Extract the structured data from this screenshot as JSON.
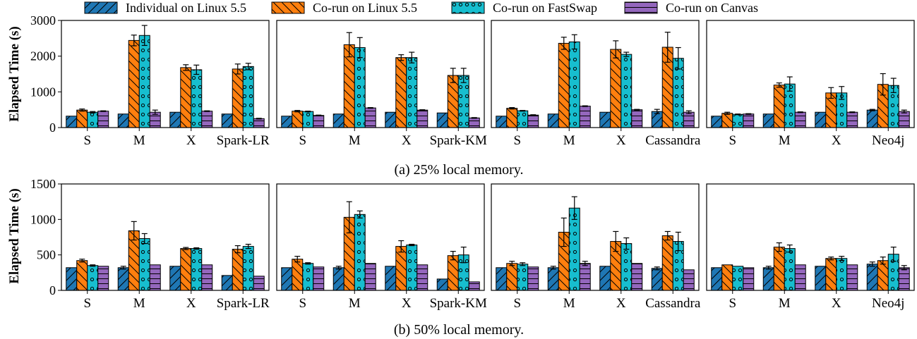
{
  "legend": {
    "entries": [
      {
        "label": "Individual on Linux 5.5",
        "color": "#1f77b4",
        "pattern": "slash"
      },
      {
        "label": "Co-run on Linux 5.5",
        "color": "#ff7f0e",
        "pattern": "backslash"
      },
      {
        "label": "Co-run on FastSwap",
        "color": "#17becf",
        "pattern": "circles"
      },
      {
        "label": "Co-run on Canvas",
        "color": "#9467bd",
        "pattern": "hlines"
      }
    ]
  },
  "rows": [
    {
      "caption": "(a) 25% local memory.",
      "ylabel": "Elapsed Time (s)"
    },
    {
      "caption": "(b) 50% local memory.",
      "ylabel": "Elapsed Time (s)"
    }
  ],
  "chart_data": [
    {
      "type": "bar",
      "row": 0,
      "col": 0,
      "categories": [
        "S",
        "M",
        "X",
        "Spark-LR"
      ],
      "ylim": [
        0,
        3000
      ],
      "yticks": [
        "0",
        "1000",
        "2000",
        "3000"
      ],
      "ylabel": "Elapsed Time (s)",
      "series": [
        {
          "name": "Individual on Linux 5.5",
          "values": [
            320,
            380,
            430,
            380
          ],
          "err": [
            0,
            0,
            0,
            0
          ]
        },
        {
          "name": "Co-run on Linux 5.5",
          "values": [
            490,
            2440,
            1680,
            1640
          ],
          "err": [
            30,
            150,
            80,
            140
          ]
        },
        {
          "name": "Co-run on FastSwap",
          "values": [
            430,
            2580,
            1620,
            1710
          ],
          "err": [
            20,
            280,
            130,
            90
          ]
        },
        {
          "name": "Co-run on Canvas",
          "values": [
            460,
            430,
            460,
            250
          ],
          "err": [
            10,
            60,
            10,
            10
          ]
        }
      ]
    },
    {
      "type": "bar",
      "row": 0,
      "col": 1,
      "categories": [
        "S",
        "M",
        "X",
        "Spark-KM"
      ],
      "ylim": [
        0,
        3000
      ],
      "ylabel": "",
      "series": [
        {
          "name": "Individual on Linux 5.5",
          "values": [
            320,
            380,
            430,
            410
          ],
          "err": [
            0,
            0,
            0,
            0
          ]
        },
        {
          "name": "Co-run on Linux 5.5",
          "values": [
            460,
            2320,
            1960,
            1460
          ],
          "err": [
            20,
            340,
            80,
            200
          ]
        },
        {
          "name": "Co-run on FastSwap",
          "values": [
            450,
            2240,
            1960,
            1460
          ],
          "err": [
            10,
            280,
            150,
            200
          ]
        },
        {
          "name": "Co-run on Canvas",
          "values": [
            340,
            550,
            490,
            270
          ],
          "err": [
            10,
            10,
            10,
            10
          ]
        }
      ]
    },
    {
      "type": "bar",
      "row": 0,
      "col": 2,
      "categories": [
        "S",
        "M",
        "X",
        "Cassandra"
      ],
      "ylim": [
        0,
        3000
      ],
      "ylabel": "",
      "series": [
        {
          "name": "Individual on Linux 5.5",
          "values": [
            320,
            380,
            430,
            450
          ],
          "err": [
            0,
            0,
            0,
            60
          ]
        },
        {
          "name": "Co-run on Linux 5.5",
          "values": [
            540,
            2360,
            2190,
            2250
          ],
          "err": [
            20,
            170,
            240,
            420
          ]
        },
        {
          "name": "Co-run on FastSwap",
          "values": [
            470,
            2400,
            2050,
            1940
          ],
          "err": [
            10,
            200,
            60,
            300
          ]
        },
        {
          "name": "Co-run on Canvas",
          "values": [
            350,
            600,
            500,
            430
          ],
          "err": [
            10,
            10,
            10,
            40
          ]
        }
      ]
    },
    {
      "type": "bar",
      "row": 0,
      "col": 3,
      "categories": [
        "S",
        "M",
        "X",
        "Neo4j"
      ],
      "ylim": [
        0,
        3000
      ],
      "ylabel": "",
      "series": [
        {
          "name": "Individual on Linux 5.5",
          "values": [
            320,
            380,
            430,
            490
          ],
          "err": [
            0,
            0,
            0,
            20
          ]
        },
        {
          "name": "Co-run on Linux 5.5",
          "values": [
            400,
            1190,
            970,
            1210
          ],
          "err": [
            30,
            60,
            150,
            300
          ]
        },
        {
          "name": "Co-run on FastSwap",
          "values": [
            370,
            1220,
            970,
            1180
          ],
          "err": [
            10,
            200,
            180,
            200
          ]
        },
        {
          "name": "Co-run on Canvas",
          "values": [
            380,
            430,
            430,
            450
          ],
          "err": [
            10,
            10,
            10,
            40
          ]
        }
      ]
    },
    {
      "type": "bar",
      "row": 1,
      "col": 0,
      "categories": [
        "S",
        "M",
        "X",
        "Spark-LR"
      ],
      "ylim": [
        0,
        1500
      ],
      "yticks": [
        "0",
        "500",
        "1000",
        "1500"
      ],
      "ylabel": "Elapsed Time (s)",
      "series": [
        {
          "name": "Individual on Linux 5.5",
          "values": [
            320,
            320,
            340,
            210
          ],
          "err": [
            0,
            20,
            0,
            0
          ]
        },
        {
          "name": "Co-run on Linux 5.5",
          "values": [
            420,
            840,
            590,
            580
          ],
          "err": [
            20,
            130,
            15,
            50
          ]
        },
        {
          "name": "Co-run on FastSwap",
          "values": [
            350,
            730,
            590,
            620
          ],
          "err": [
            10,
            70,
            10,
            30
          ]
        },
        {
          "name": "Co-run on Canvas",
          "values": [
            340,
            360,
            360,
            200
          ],
          "err": [
            0,
            0,
            0,
            0
          ]
        }
      ]
    },
    {
      "type": "bar",
      "row": 1,
      "col": 1,
      "categories": [
        "S",
        "M",
        "X",
        "Spark-KM"
      ],
      "ylim": [
        0,
        1500
      ],
      "ylabel": "",
      "series": [
        {
          "name": "Individual on Linux 5.5",
          "values": [
            320,
            320,
            340,
            160
          ],
          "err": [
            0,
            20,
            0,
            0
          ]
        },
        {
          "name": "Co-run on Linux 5.5",
          "values": [
            440,
            1030,
            620,
            490
          ],
          "err": [
            40,
            220,
            80,
            60
          ]
        },
        {
          "name": "Co-run on FastSwap",
          "values": [
            380,
            1070,
            640,
            500
          ],
          "err": [
            10,
            50,
            10,
            110
          ]
        },
        {
          "name": "Co-run on Canvas",
          "values": [
            330,
            380,
            360,
            120
          ],
          "err": [
            0,
            0,
            0,
            0
          ]
        }
      ]
    },
    {
      "type": "bar",
      "row": 1,
      "col": 2,
      "categories": [
        "S",
        "M",
        "X",
        "Cassandra"
      ],
      "ylim": [
        0,
        1500
      ],
      "ylabel": "",
      "series": [
        {
          "name": "Individual on Linux 5.5",
          "values": [
            320,
            320,
            340,
            310
          ],
          "err": [
            0,
            20,
            0,
            20
          ]
        },
        {
          "name": "Co-run on Linux 5.5",
          "values": [
            380,
            820,
            690,
            770
          ],
          "err": [
            30,
            200,
            140,
            60
          ]
        },
        {
          "name": "Co-run on FastSwap",
          "values": [
            370,
            1160,
            660,
            690
          ],
          "err": [
            20,
            160,
            80,
            130
          ]
        },
        {
          "name": "Co-run on Canvas",
          "values": [
            330,
            380,
            380,
            290
          ],
          "err": [
            0,
            30,
            0,
            0
          ]
        }
      ]
    },
    {
      "type": "bar",
      "row": 1,
      "col": 3,
      "categories": [
        "S",
        "M",
        "X",
        "Neo4j"
      ],
      "ylim": [
        0,
        1500
      ],
      "ylabel": "",
      "series": [
        {
          "name": "Individual on Linux 5.5",
          "values": [
            320,
            320,
            340,
            370
          ],
          "err": [
            0,
            20,
            0,
            30
          ]
        },
        {
          "name": "Co-run on Linux 5.5",
          "values": [
            360,
            610,
            450,
            420
          ],
          "err": [
            0,
            60,
            20,
            50
          ]
        },
        {
          "name": "Co-run on FastSwap",
          "values": [
            340,
            590,
            450,
            510
          ],
          "err": [
            0,
            50,
            30,
            100
          ]
        },
        {
          "name": "Co-run on Canvas",
          "values": [
            320,
            360,
            360,
            320
          ],
          "err": [
            0,
            0,
            0,
            30
          ]
        }
      ]
    }
  ]
}
